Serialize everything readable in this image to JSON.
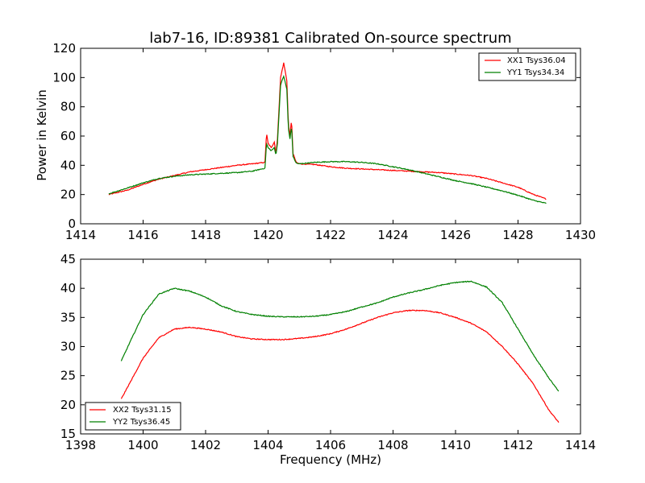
{
  "chart_data": [
    {
      "type": "line",
      "title": "lab7-16, ID:89381 Calibrated On-source spectrum",
      "xlabel": "",
      "ylabel": "Power in Kelvin",
      "xlim": [
        1414,
        1430
      ],
      "ylim": [
        0,
        120
      ],
      "xticks": [
        "1414",
        "1416",
        "1418",
        "1420",
        "1422",
        "1424",
        "1426",
        "1428",
        "1430"
      ],
      "yticks": [
        "0",
        "20",
        "40",
        "60",
        "80",
        "100",
        "120"
      ],
      "legend_position": "top-right",
      "series": [
        {
          "name": "XX1 Tsys36.04",
          "color": "#ff0000",
          "x": [
            1414.9,
            1415.5,
            1416.0,
            1416.5,
            1417.0,
            1417.5,
            1418.0,
            1418.5,
            1419.0,
            1419.5,
            1419.9,
            1419.95,
            1420.0,
            1420.1,
            1420.2,
            1420.25,
            1420.3,
            1420.4,
            1420.5,
            1420.6,
            1420.65,
            1420.7,
            1420.75,
            1420.8,
            1420.9,
            1421.0,
            1421.5,
            1422.0,
            1422.5,
            1423.0,
            1423.5,
            1424.0,
            1424.5,
            1425.0,
            1425.5,
            1426.0,
            1426.5,
            1427.0,
            1427.5,
            1428.0,
            1428.5,
            1428.9
          ],
          "values": [
            20,
            23,
            27,
            30.5,
            33,
            35.5,
            37,
            38.5,
            40,
            41,
            42,
            62,
            55,
            52,
            56,
            48,
            58,
            100,
            110,
            98,
            68,
            60,
            71,
            48,
            42,
            41,
            40.5,
            39,
            38,
            37.5,
            37,
            36.5,
            36,
            35.5,
            35,
            34,
            33,
            31,
            28,
            25,
            20,
            17
          ]
        },
        {
          "name": "YY1 Tsys34.34",
          "color": "#008000",
          "x": [
            1414.9,
            1415.5,
            1416.0,
            1416.5,
            1417.0,
            1417.5,
            1418.0,
            1418.5,
            1419.0,
            1419.5,
            1419.9,
            1419.95,
            1420.0,
            1420.1,
            1420.2,
            1420.25,
            1420.3,
            1420.4,
            1420.5,
            1420.6,
            1420.65,
            1420.7,
            1420.75,
            1420.8,
            1420.9,
            1421.0,
            1421.5,
            1422.0,
            1422.5,
            1423.0,
            1423.5,
            1424.0,
            1424.5,
            1425.0,
            1425.5,
            1426.0,
            1426.5,
            1427.0,
            1427.5,
            1428.0,
            1428.5,
            1428.9
          ],
          "values": [
            20.5,
            24.5,
            28,
            31,
            32.5,
            33.5,
            34,
            34.5,
            35,
            36,
            38,
            55,
            52,
            50,
            52,
            47,
            55,
            95,
            101,
            92,
            65,
            58,
            67,
            46,
            41.5,
            41,
            42,
            42.5,
            42.5,
            42,
            41,
            39,
            37,
            34.5,
            32,
            29.5,
            27.5,
            25,
            22.5,
            19.5,
            16,
            14
          ]
        }
      ]
    },
    {
      "type": "line",
      "title": "",
      "xlabel": "Frequency (MHz)",
      "ylabel": "",
      "xlim": [
        1398,
        1414
      ],
      "ylim": [
        15,
        45
      ],
      "xticks": [
        "1398",
        "1400",
        "1402",
        "1404",
        "1406",
        "1408",
        "1410",
        "1412",
        "1414"
      ],
      "yticks": [
        "15",
        "20",
        "25",
        "30",
        "35",
        "40",
        "45"
      ],
      "legend_position": "bottom-left",
      "series": [
        {
          "name": "XX2 Tsys31.15",
          "color": "#ff0000",
          "x": [
            1399.3,
            1399.6,
            1400.0,
            1400.5,
            1401.0,
            1401.5,
            1402.0,
            1402.5,
            1403.0,
            1403.5,
            1404.0,
            1404.5,
            1405.0,
            1405.5,
            1406.0,
            1406.5,
            1407.0,
            1407.5,
            1408.0,
            1408.5,
            1409.0,
            1409.5,
            1410.0,
            1410.5,
            1411.0,
            1411.5,
            1412.0,
            1412.5,
            1413.0,
            1413.3
          ],
          "values": [
            21,
            24,
            28,
            31.5,
            33,
            33.3,
            33,
            32.5,
            31.7,
            31.3,
            31.2,
            31.2,
            31.4,
            31.7,
            32.2,
            33,
            34,
            35,
            35.8,
            36.2,
            36.2,
            35.8,
            35,
            34,
            32.5,
            30,
            27,
            23.5,
            19,
            17
          ]
        },
        {
          "name": "YY2 Tsys36.45",
          "color": "#008000",
          "x": [
            1399.3,
            1399.6,
            1400.0,
            1400.5,
            1401.0,
            1401.5,
            1402.0,
            1402.5,
            1403.0,
            1403.5,
            1404.0,
            1404.5,
            1405.0,
            1405.5,
            1406.0,
            1406.5,
            1407.0,
            1407.5,
            1408.0,
            1408.5,
            1409.0,
            1409.5,
            1410.0,
            1410.5,
            1411.0,
            1411.5,
            1412.0,
            1412.5,
            1413.0,
            1413.3
          ],
          "values": [
            27.5,
            31,
            35.5,
            39,
            40,
            39.5,
            38.5,
            37,
            36,
            35.5,
            35.2,
            35.1,
            35.1,
            35.2,
            35.5,
            36,
            36.8,
            37.5,
            38.5,
            39.2,
            39.8,
            40.5,
            41,
            41.2,
            40.2,
            37.5,
            33,
            28.5,
            24.5,
            22.3
          ]
        }
      ]
    }
  ]
}
